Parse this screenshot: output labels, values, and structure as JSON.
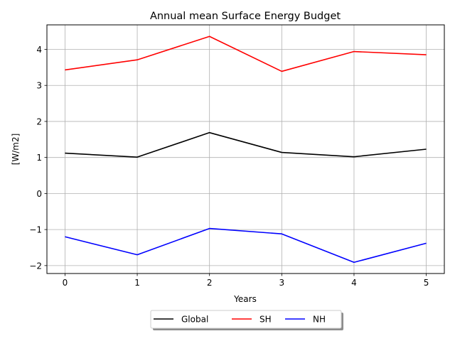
{
  "chart_data": {
    "type": "line",
    "title": "Annual mean Surface Energy Budget",
    "xlabel": "Years",
    "ylabel": "[W/m2]",
    "x": [
      0,
      1,
      2,
      3,
      4,
      5
    ],
    "xlim": [
      -0.25,
      5.25
    ],
    "ylim": [
      -2.22,
      4.68
    ],
    "xticks": [
      0,
      1,
      2,
      3,
      4,
      5
    ],
    "xtick_labels": [
      "0",
      "1",
      "2",
      "3",
      "4",
      "5"
    ],
    "yticks": [
      -2,
      -1,
      0,
      1,
      2,
      3,
      4
    ],
    "ytick_labels": [
      "−2",
      "−1",
      "0",
      "1",
      "2",
      "3",
      "4"
    ],
    "grid": true,
    "legend_position": "bottom-center, outside plot, with shadow",
    "series": [
      {
        "name": "Global",
        "color": "#000000",
        "values": [
          1.12,
          1.01,
          1.69,
          1.14,
          1.02,
          1.23
        ]
      },
      {
        "name": "SH",
        "color": "#ff0000",
        "values": [
          3.43,
          3.71,
          4.36,
          3.39,
          3.94,
          3.85
        ]
      },
      {
        "name": "NH",
        "color": "#0000ff",
        "values": [
          -1.2,
          -1.7,
          -0.97,
          -1.12,
          -1.91,
          -1.38
        ]
      }
    ]
  }
}
